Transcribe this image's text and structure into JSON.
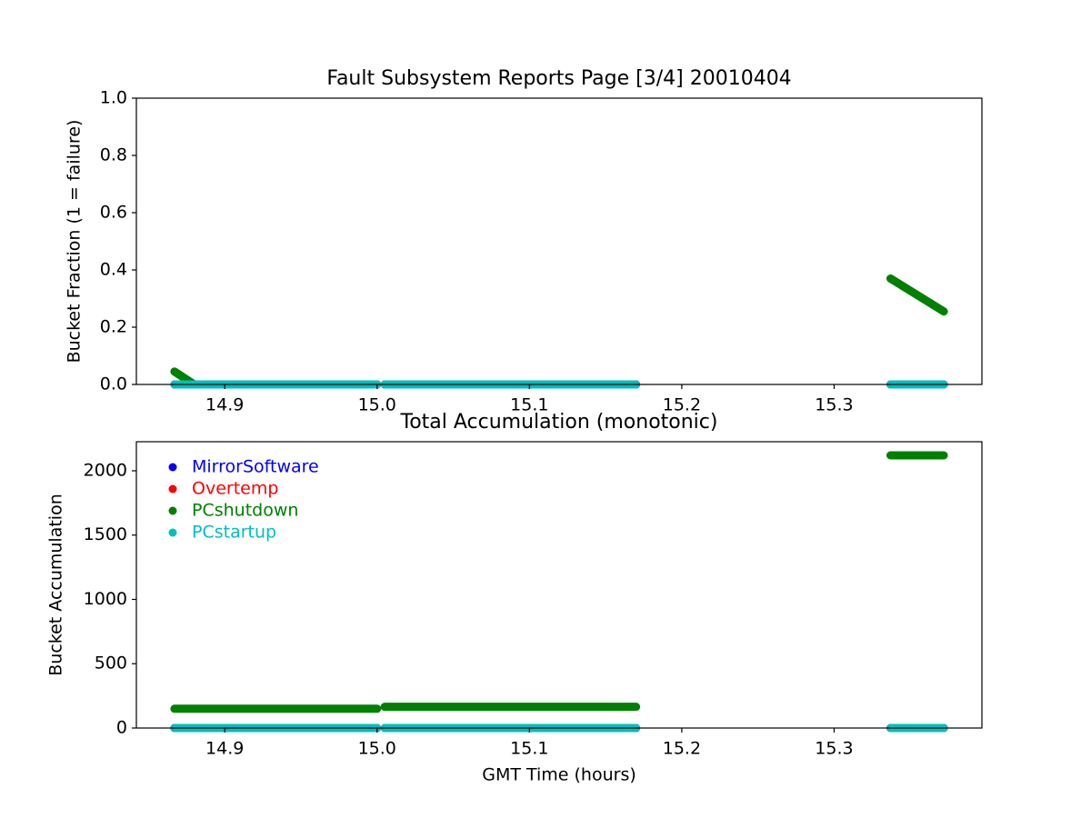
{
  "chart_data": [
    {
      "type": "line",
      "title": "Fault Subsystem Reports Page [3/4] 20010404",
      "y_label": "Bucket Fraction (1 = failure)",
      "x": [
        14.867,
        14.88,
        15.0,
        15.0025,
        15.005,
        15.17,
        15.25,
        15.337,
        15.372
      ],
      "series": [
        {
          "name": "MirrorSoftware",
          "color": "#0000ff",
          "values": [
            0,
            0,
            0,
            null,
            0,
            0,
            null,
            0,
            0
          ]
        },
        {
          "name": "Overtemp",
          "color": "#ff0000",
          "values": [
            0,
            0,
            0,
            null,
            0,
            0,
            null,
            0,
            0
          ]
        },
        {
          "name": "PCshutdown",
          "color": "#008000",
          "values": [
            0.045,
            0,
            0,
            null,
            0,
            0,
            null,
            0.37,
            0.255
          ]
        },
        {
          "name": "PCstartup",
          "color": "#00bfbf",
          "values": [
            0,
            0,
            0,
            null,
            0,
            0,
            null,
            0,
            0
          ]
        }
      ],
      "xlim": [
        14.842,
        15.397
      ],
      "xticks": [
        14.9,
        {
          "value": 15.0,
          "label": "15.0"
        },
        15.1,
        15.2,
        15.3
      ],
      "ylim": [
        0,
        1
      ],
      "yticks": [
        {
          "value": 0,
          "label": "0.0"
        },
        0.2,
        0.4,
        0.6,
        0.8,
        {
          "value": 1,
          "label": "1.0"
        }
      ]
    },
    {
      "type": "line",
      "title": "Total Accumulation (monotonic)",
      "x_label": "GMT Time (hours)",
      "y_label": "Bucket Accumulation",
      "legend": "upper left",
      "x": [
        14.867,
        14.88,
        15.0,
        15.0025,
        15.005,
        15.17,
        15.25,
        15.337,
        15.372
      ],
      "series": [
        {
          "name": "MirrorSoftware",
          "color": "#0000ff",
          "values": [
            0,
            0,
            0,
            null,
            0,
            0,
            null,
            0,
            0
          ]
        },
        {
          "name": "Overtemp",
          "color": "#ff0000",
          "values": [
            0,
            0,
            0,
            null,
            0,
            0,
            null,
            0,
            0
          ]
        },
        {
          "name": "PCshutdown",
          "color": "#008000",
          "values": [
            150,
            150,
            150,
            null,
            165,
            165,
            null,
            2120,
            2120
          ]
        },
        {
          "name": "PCstartup",
          "color": "#00bfbf",
          "values": [
            0,
            0,
            0,
            null,
            0,
            0,
            null,
            0,
            0
          ]
        }
      ],
      "xlim": [
        14.842,
        15.397
      ],
      "xticks": [
        14.9,
        {
          "value": 15.0,
          "label": "15.0"
        },
        15.1,
        15.2,
        15.3
      ],
      "ylim": [
        0,
        2226
      ],
      "yticks": [
        0,
        500,
        1000,
        1500,
        2000
      ]
    }
  ]
}
